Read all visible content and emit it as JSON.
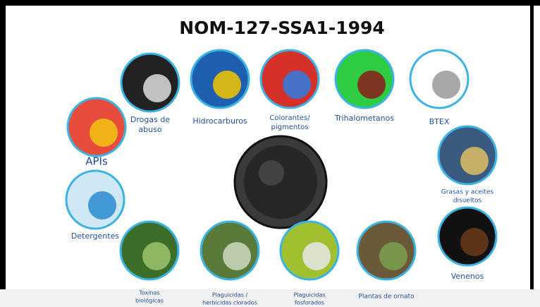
{
  "title": "NOM-127-SSA1-1994",
  "items": [
    {
      "lines": [
        "APIs"
      ]
    },
    {
      "lines": [
        "Drogas de",
        "abuso"
      ]
    },
    {
      "lines": [
        "Hidrocarburos"
      ]
    },
    {
      "lines": [
        "Colorantes/",
        "pigmentos"
      ]
    },
    {
      "lines": [
        "Trihalometanos"
      ]
    },
    {
      "lines": [
        "BTEX"
      ]
    },
    {
      "lines": [
        "Grasas y aceites",
        "disueltos"
      ]
    },
    {
      "lines": [
        "Detergentes"
      ]
    },
    {
      "lines": [
        "Venenos"
      ]
    },
    {
      "lines": [
        "Toxinas",
        "biológicas"
      ]
    },
    {
      "lines": [
        "Plaguicidas /",
        "herbicidas clorados"
      ]
    },
    {
      "lines": [
        "Plaguicidas",
        "fosforados"
      ]
    },
    {
      "lines": [
        "Plantas de ornato"
      ]
    }
  ]
}
